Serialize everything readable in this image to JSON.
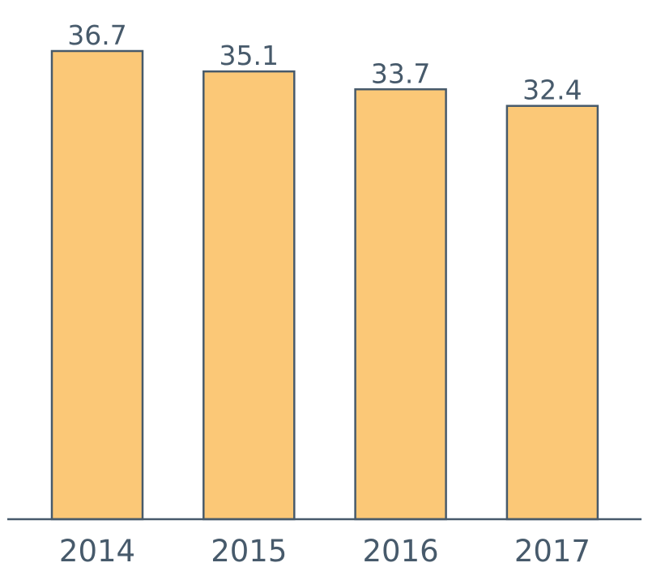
{
  "chart_data": {
    "type": "bar",
    "title": "",
    "xlabel": "",
    "ylabel": "",
    "categories": [
      "2014",
      "2015",
      "2016",
      "2017"
    ],
    "values": [
      36.7,
      35.1,
      33.7,
      32.4
    ],
    "value_labels": [
      "36.7",
      "35.1",
      "33.7",
      "32.4"
    ],
    "ylim": [
      0,
      36.7
    ],
    "grid": false,
    "legend": "none",
    "colors": {
      "bar_fill": "#fbc877",
      "bar_stroke": "#475a6b",
      "text": "#475a6b"
    }
  }
}
